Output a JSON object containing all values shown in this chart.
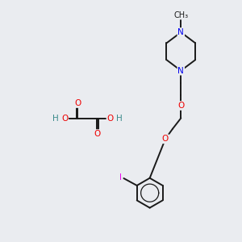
{
  "bg_color": "#eaecf0",
  "bond_color": "#1a1a1a",
  "atom_colors": {
    "N": "#0000ee",
    "O": "#ee0000",
    "I": "#ee00ee",
    "H": "#3a8a8a",
    "C": "#1a1a1a"
  },
  "bond_lw": 1.4,
  "font_size": 7.5
}
